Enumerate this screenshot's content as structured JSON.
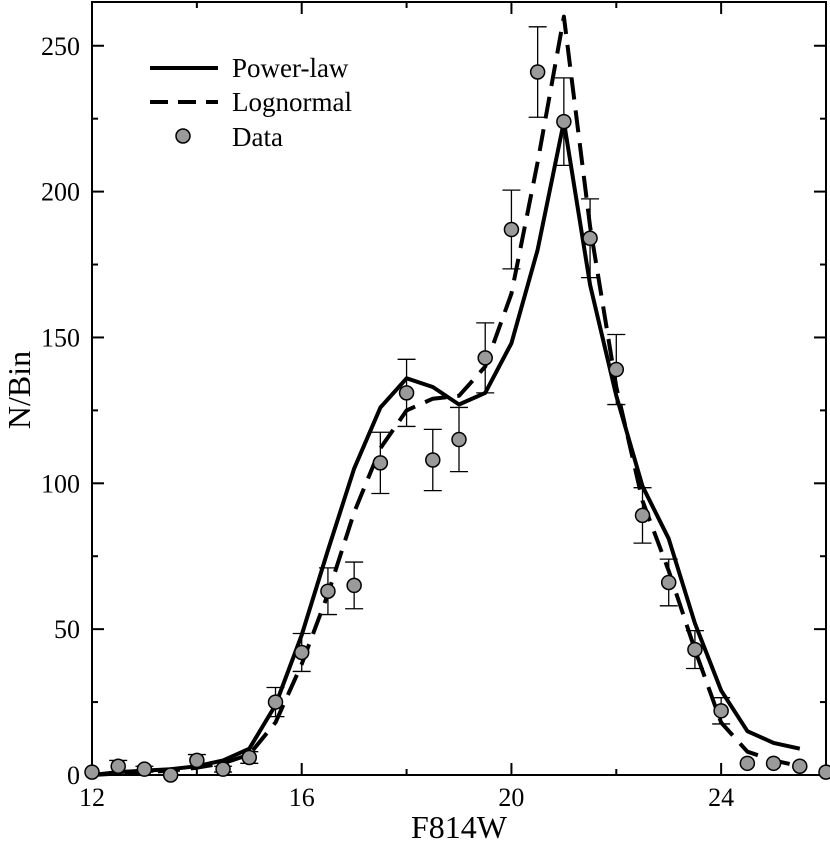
{
  "chart_data": {
    "type": "line",
    "title": "",
    "xlabel": "F814W",
    "ylabel": "N/Bin",
    "xlim": [
      12,
      26
    ],
    "ylim": [
      0,
      265
    ],
    "xticks": [
      12,
      16,
      20,
      24
    ],
    "yticks": [
      0,
      50,
      100,
      150,
      200,
      250
    ],
    "xtick_labels": [
      "12",
      "16",
      "20",
      "24"
    ],
    "ytick_labels": [
      "0",
      "50",
      "100",
      "150",
      "200",
      "250"
    ],
    "legend_position": "top-left",
    "grid": false,
    "series": [
      {
        "name": "Power-law",
        "style": "solid",
        "color": "#000000",
        "x": [
          12,
          12.5,
          13,
          13.5,
          14,
          14.5,
          15,
          15.5,
          16,
          16.5,
          17,
          17.5,
          18,
          18.5,
          19,
          19.5,
          20,
          20.5,
          21,
          21.5,
          22,
          22.5,
          23,
          23.5,
          24,
          24.5,
          25,
          25.5
        ],
        "y": [
          0,
          1,
          1.5,
          2,
          3,
          5,
          9,
          24,
          48,
          77,
          105,
          126,
          136,
          133,
          127,
          131,
          148,
          180,
          224,
          168,
          130,
          99,
          81,
          52,
          29,
          15,
          11,
          9
        ]
      },
      {
        "name": "Lognormal",
        "style": "dashed",
        "color": "#000000",
        "x": [
          12,
          12.5,
          13,
          13.5,
          14,
          14.5,
          15,
          15.5,
          16,
          16.5,
          17,
          17.5,
          18,
          18.5,
          19,
          19.5,
          20,
          20.5,
          21,
          21.5,
          22,
          22.5,
          23,
          23.5,
          24,
          24.5,
          25,
          25.5
        ],
        "y": [
          0,
          0.5,
          1,
          1.5,
          2.5,
          4,
          7,
          18,
          38,
          62,
          90,
          112,
          125,
          129,
          130,
          140,
          165,
          210,
          260,
          188,
          133,
          94,
          70,
          43,
          18,
          8,
          5,
          3
        ]
      },
      {
        "name": "Data",
        "style": "markers",
        "color": "#888888",
        "x": [
          12,
          12.5,
          13,
          13.5,
          14,
          14.5,
          15,
          15.5,
          16,
          16.5,
          17,
          17.5,
          18,
          18.5,
          19,
          19.5,
          20,
          20.5,
          21,
          21.5,
          22,
          22.5,
          23,
          23.5,
          24,
          24.5,
          25,
          25.5,
          26
        ],
        "y": [
          1,
          3,
          2,
          0,
          5,
          2,
          6,
          25,
          42,
          63,
          65,
          107,
          131,
          108,
          115,
          143,
          187,
          241,
          224,
          184,
          139,
          89,
          66,
          43,
          22,
          4,
          4,
          3,
          1
        ],
        "err": [
          0,
          2,
          1,
          0,
          2,
          1,
          2,
          5,
          6.5,
          8,
          8,
          10.5,
          11.5,
          10.5,
          11,
          12,
          13.5,
          15.5,
          15,
          13.5,
          12,
          9.5,
          8,
          6.5,
          4.5,
          0,
          0,
          0,
          0
        ]
      }
    ]
  }
}
